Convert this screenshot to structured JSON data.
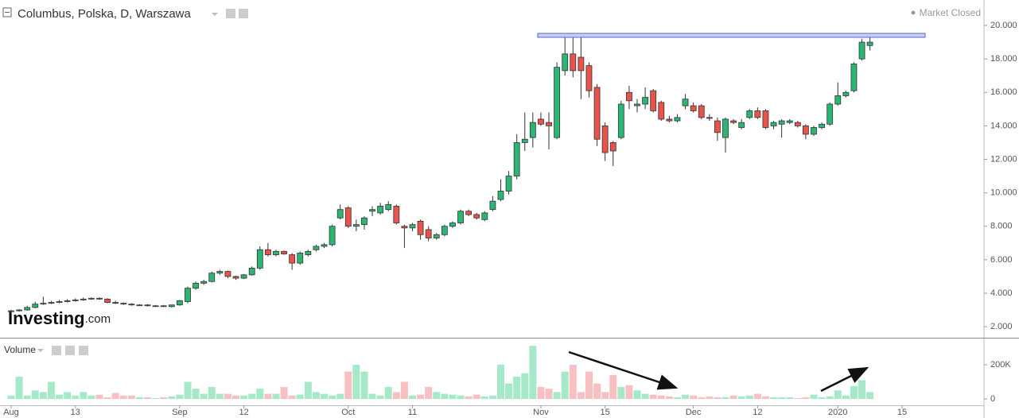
{
  "chart_data": {
    "type": "candlestick",
    "title": "Columbus, Polska, D, Warszawa",
    "status": "Market Closed",
    "watermark": "Investing",
    "watermark_suffix": ".com",
    "up_color": "#2bb673",
    "down_color": "#e8534b",
    "grid": false,
    "categories": [
      "Aug",
      null,
      null,
      null,
      null,
      null,
      null,
      null,
      "13",
      null,
      null,
      null,
      null,
      null,
      null,
      null,
      null,
      null,
      null,
      null,
      null,
      "Sep",
      null,
      null,
      null,
      null,
      null,
      null,
      null,
      "12",
      null,
      null,
      null,
      null,
      null,
      null,
      null,
      null,
      null,
      null,
      null,
      null,
      "Oct",
      null,
      null,
      null,
      null,
      null,
      null,
      null,
      "11",
      null,
      null,
      null,
      null,
      null,
      null,
      null,
      null,
      null,
      null,
      null,
      null,
      null,
      null,
      null,
      "Nov",
      null,
      null,
      null,
      null,
      null,
      null,
      null,
      "15",
      null,
      null,
      null,
      null,
      null,
      null,
      null,
      null,
      null,
      null,
      "Dec",
      null,
      null,
      null,
      null,
      null,
      null,
      null,
      "12",
      null,
      null,
      null,
      null,
      null,
      null,
      null,
      null,
      null,
      "2020",
      null,
      null,
      null,
      null,
      null,
      null,
      null,
      "15"
    ],
    "open": [
      2.9,
      2.95,
      3.0,
      3.15,
      3.35,
      3.4,
      3.45,
      3.5,
      3.55,
      3.6,
      3.65,
      3.7,
      3.65,
      3.45,
      3.4,
      3.35,
      3.3,
      3.3,
      3.25,
      3.25,
      3.2,
      3.3,
      3.5,
      4.3,
      4.6,
      4.7,
      5.2,
      5.3,
      5.0,
      4.9,
      5.1,
      5.5,
      6.6,
      6.3,
      6.5,
      6.3,
      5.8,
      6.3,
      6.6,
      6.8,
      6.9,
      8.5,
      9.1,
      8.0,
      8.1,
      8.9,
      8.8,
      9.0,
      9.2,
      8.0,
      7.9,
      8.3,
      7.8,
      7.3,
      7.5,
      8.0,
      8.2,
      8.9,
      8.7,
      8.4,
      9.0,
      9.6,
      10.1,
      11.0,
      13.0,
      13.3,
      14.4,
      14.2,
      13.3,
      17.3,
      18.3,
      18.1,
      17.6,
      16.3,
      14.0,
      13.0,
      13.3,
      16.0,
      15.2,
      15.3,
      16.1,
      15.4,
      14.4,
      14.3,
      15.2,
      15.2,
      15.2,
      14.5,
      14.3,
      13.3,
      14.3,
      13.9,
      14.5,
      14.9,
      14.9,
      14.0,
      14.1,
      14.2,
      14.2,
      14.0,
      13.5,
      13.9,
      14.1,
      15.3,
      15.8,
      16.1,
      18.0,
      18.8,
      null,
      null,
      null,
      null
    ],
    "high": [
      3.0,
      3.05,
      3.25,
      3.5,
      3.8,
      3.55,
      3.6,
      3.65,
      3.7,
      3.75,
      3.75,
      3.75,
      3.7,
      3.55,
      3.45,
      3.4,
      3.35,
      3.35,
      3.3,
      3.3,
      3.3,
      3.6,
      4.4,
      4.7,
      4.8,
      5.3,
      5.4,
      5.35,
      5.05,
      5.15,
      5.6,
      6.8,
      7.0,
      6.6,
      6.55,
      6.4,
      6.5,
      6.6,
      6.9,
      7.0,
      8.1,
      9.3,
      9.2,
      8.4,
      8.6,
      9.2,
      9.4,
      9.5,
      9.3,
      8.1,
      8.2,
      8.4,
      8.0,
      7.6,
      8.1,
      8.3,
      9.0,
      9.0,
      8.8,
      8.9,
      9.8,
      10.8,
      11.3,
      13.5,
      14.8,
      14.8,
      14.8,
      14.8,
      17.8,
      19.4,
      19.4,
      19.4,
      17.8,
      16.5,
      14.2,
      13.1,
      15.5,
      16.4,
      15.6,
      16.3,
      16.2,
      15.5,
      14.6,
      14.7,
      15.9,
      15.4,
      15.3,
      14.7,
      14.5,
      14.5,
      14.4,
      14.4,
      15.0,
      15.1,
      15.0,
      14.3,
      14.4,
      14.4,
      14.3,
      14.1,
      14.0,
      14.2,
      15.4,
      16.6,
      16.1,
      17.8,
      19.2,
      19.3,
      null,
      null,
      null,
      null
    ],
    "low": [
      2.8,
      2.9,
      2.95,
      3.1,
      3.3,
      3.35,
      3.4,
      3.45,
      3.5,
      3.55,
      3.6,
      3.6,
      3.4,
      3.35,
      3.3,
      3.25,
      3.25,
      3.2,
      3.2,
      3.2,
      3.15,
      3.25,
      3.4,
      4.2,
      4.5,
      4.65,
      5.1,
      4.9,
      4.8,
      4.85,
      5.05,
      5.4,
      6.2,
      6.2,
      6.3,
      5.4,
      5.7,
      6.2,
      6.5,
      6.7,
      6.8,
      8.4,
      7.9,
      7.7,
      7.8,
      8.6,
      8.7,
      8.9,
      8.1,
      6.7,
      7.7,
      7.2,
      7.1,
      7.2,
      7.4,
      7.9,
      8.1,
      8.6,
      8.4,
      8.3,
      8.9,
      9.5,
      9.9,
      10.8,
      12.5,
      12.7,
      14.0,
      12.6,
      13.2,
      17.0,
      16.9,
      15.6,
      15.7,
      12.8,
      11.9,
      11.6,
      13.2,
      15.0,
      14.8,
      15.0,
      14.8,
      14.3,
      14.2,
      14.2,
      15.0,
      14.8,
      14.4,
      14.3,
      13.1,
      12.4,
      14.1,
      13.8,
      14.4,
      14.4,
      13.8,
      13.8,
      13.3,
      14.1,
      13.9,
      13.2,
      13.4,
      13.8,
      14.0,
      15.2,
      15.7,
      16.0,
      17.9,
      18.5,
      null,
      null,
      null,
      null
    ],
    "close": [
      2.95,
      3.0,
      3.15,
      3.35,
      3.4,
      3.45,
      3.5,
      3.55,
      3.6,
      3.65,
      3.7,
      3.65,
      3.45,
      3.4,
      3.35,
      3.3,
      3.3,
      3.25,
      3.25,
      3.2,
      3.3,
      3.55,
      4.3,
      4.6,
      4.7,
      5.2,
      5.3,
      5.0,
      4.9,
      5.1,
      5.5,
      6.6,
      6.3,
      6.5,
      6.35,
      5.8,
      6.4,
      6.5,
      6.8,
      6.9,
      8.0,
      9.0,
      8.0,
      8.1,
      8.5,
      9.0,
      9.2,
      9.3,
      8.2,
      7.9,
      8.1,
      7.5,
      7.3,
      7.5,
      8.0,
      8.2,
      8.9,
      8.7,
      8.5,
      8.8,
      9.5,
      10.1,
      11.0,
      13.0,
      13.2,
      14.2,
      14.1,
      14.0,
      17.5,
      18.3,
      17.3,
      17.3,
      16.1,
      13.2,
      12.4,
      12.5,
      15.3,
      15.5,
      15.3,
      15.7,
      14.9,
      14.4,
      14.3,
      14.5,
      15.6,
      14.9,
      14.5,
      14.45,
      13.6,
      14.4,
      14.2,
      14.2,
      14.9,
      14.5,
      13.9,
      14.2,
      14.3,
      14.3,
      14.0,
      13.5,
      13.9,
      14.1,
      15.3,
      15.8,
      16.0,
      17.7,
      19.0,
      19.0,
      null,
      null,
      null,
      null
    ],
    "ylim": [
      1.34,
      21.52
    ],
    "yticks": [
      {
        "value": 2,
        "label": "2.000"
      },
      {
        "value": 4,
        "label": "4.000"
      },
      {
        "value": 6,
        "label": "6.000"
      },
      {
        "value": 8,
        "label": "8.000"
      },
      {
        "value": 10,
        "label": "10.000"
      },
      {
        "value": 12,
        "label": "12.000"
      },
      {
        "value": 14,
        "label": "14.000"
      },
      {
        "value": 16,
        "label": "16.000"
      },
      {
        "value": 18,
        "label": "18.000"
      },
      {
        "value": 20,
        "label": "20.000"
      }
    ],
    "volume": {
      "title": "Volume",
      "up_color": "#a6e9c9",
      "down_color": "#f8c0c0",
      "values": [
        20000,
        130000,
        20000,
        50000,
        40000,
        100000,
        25000,
        40000,
        20000,
        40000,
        20000,
        25000,
        10000,
        35000,
        20000,
        20000,
        10000,
        10000,
        5000,
        10000,
        15000,
        25000,
        100000,
        60000,
        30000,
        70000,
        30000,
        30000,
        20000,
        20000,
        30000,
        60000,
        30000,
        30000,
        70000,
        20000,
        25000,
        100000,
        40000,
        30000,
        20000,
        30000,
        160000,
        200000,
        160000,
        30000,
        20000,
        70000,
        40000,
        100000,
        20000,
        25000,
        70000,
        40000,
        30000,
        25000,
        20000,
        15000,
        25000,
        15000,
        20000,
        200000,
        90000,
        130000,
        150000,
        310000,
        70000,
        60000,
        40000,
        160000,
        200000,
        40000,
        160000,
        90000,
        40000,
        140000,
        70000,
        80000,
        50000,
        30000,
        25000,
        20000,
        15000,
        10000,
        25000,
        20000,
        10000,
        15000,
        10000,
        10000,
        20000,
        15000,
        20000,
        30000,
        15000,
        10000,
        10000,
        10000,
        5000,
        10000,
        25000,
        10000,
        15000,
        50000,
        20000,
        75000,
        110000,
        40000,
        null,
        null,
        null,
        null
      ],
      "ylim": [
        -37000,
        353000
      ],
      "yticks": [
        0,
        {
          "value": 200000,
          "label": "200K"
        }
      ]
    }
  }
}
